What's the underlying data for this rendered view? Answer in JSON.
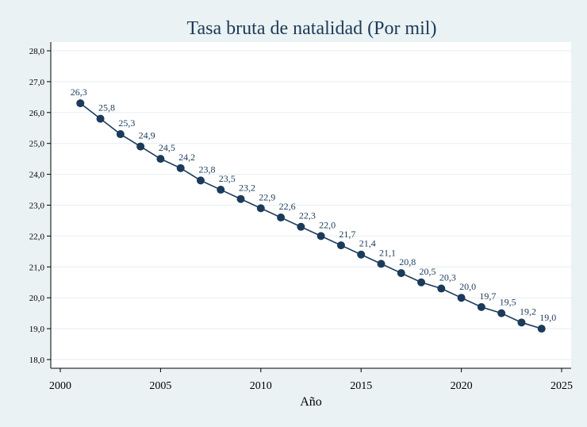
{
  "chart_data": {
    "type": "line",
    "title": "Tasa bruta de natalidad (Por mil)",
    "xlabel": "Año",
    "ylabel": "",
    "xlim": [
      2000,
      2025
    ],
    "ylim": [
      18.0,
      28.0
    ],
    "x_ticks": [
      2000,
      2005,
      2010,
      2015,
      2020,
      2025
    ],
    "y_ticks": [
      "18,0",
      "19,0",
      "20,0",
      "21,0",
      "22,0",
      "23,0",
      "24,0",
      "25,0",
      "26,0",
      "27,0",
      "28,0"
    ],
    "grid": true,
    "legend": "none",
    "series": [
      {
        "x": [
          2001,
          2002,
          2003,
          2004,
          2005,
          2006,
          2007,
          2008,
          2009,
          2010,
          2011,
          2012,
          2013,
          2014,
          2015,
          2016,
          2017,
          2018,
          2019,
          2020,
          2021,
          2022,
          2023,
          2024
        ],
        "y": [
          26.3,
          25.8,
          25.3,
          24.9,
          24.5,
          24.2,
          23.8,
          23.5,
          23.2,
          22.9,
          22.6,
          22.3,
          22.0,
          21.7,
          21.4,
          21.1,
          20.8,
          20.5,
          20.3,
          20.0,
          19.7,
          19.5,
          19.2,
          19.0
        ],
        "labels": [
          "26,3",
          "25,8",
          "25,3",
          "24,9",
          "24,5",
          "24,2",
          "23,8",
          "23,5",
          "23,2",
          "22,9",
          "22,6",
          "22,3",
          "22,0",
          "21,7",
          "21,4",
          "21,1",
          "20,8",
          "20,5",
          "20,3",
          "20,0",
          "19,7",
          "19,5",
          "19,2",
          "19,0"
        ]
      }
    ],
    "colors": {
      "background": "#eaf2f3",
      "plot_background": "#ffffff",
      "line": "#1c3a5a",
      "marker": "#1c3a5a",
      "grid": "#e6eef0",
      "title": "#1c3a5a"
    }
  }
}
